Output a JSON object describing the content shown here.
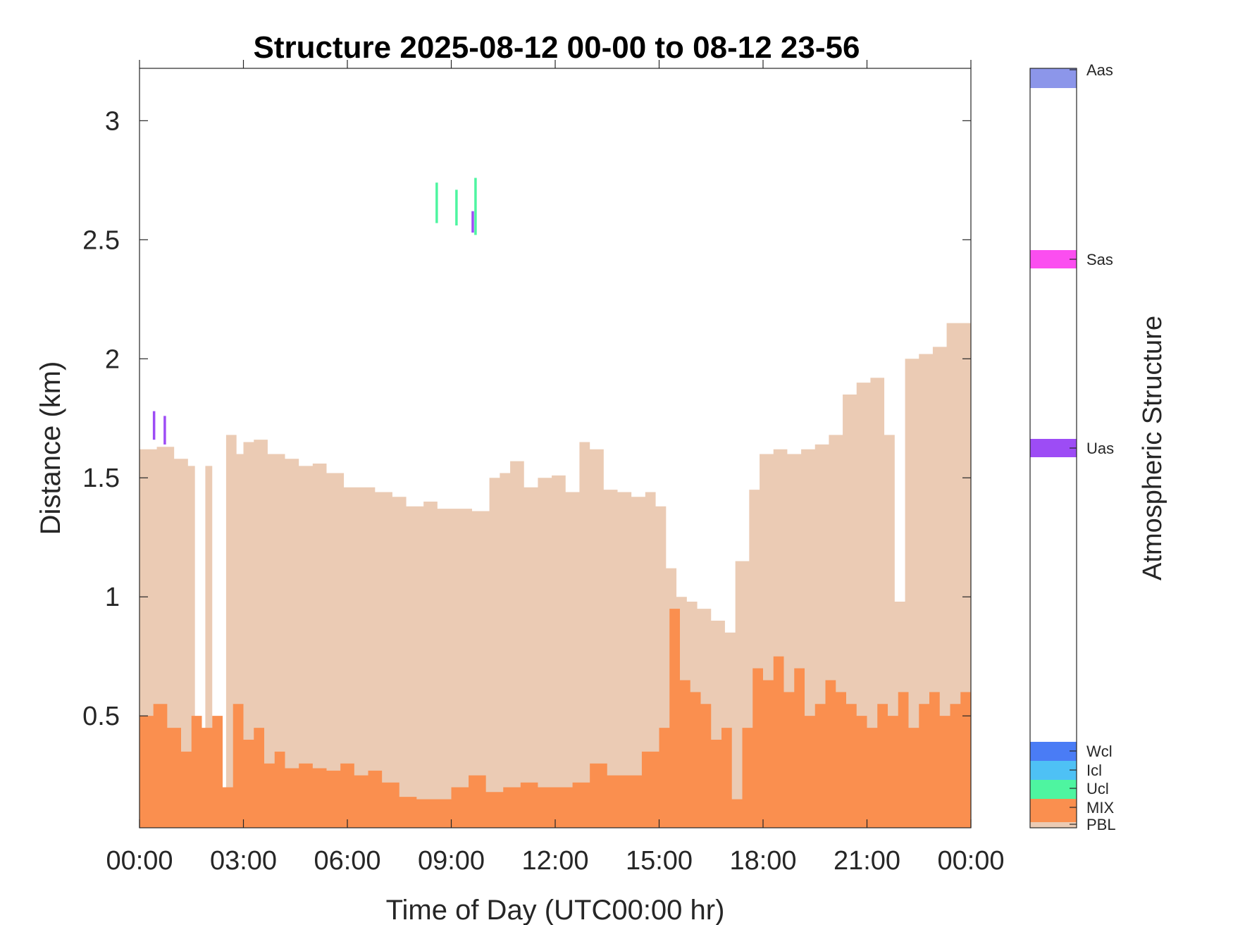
{
  "chart_data": {
    "type": "area",
    "title": "Structure 2025-08-12 00-00 to 08-12 23-56",
    "xlabel": "Time of Day (UTC00:00 hr)",
    "ylabel": "Distance (km)",
    "xlim": [
      0,
      24
    ],
    "ylim": [
      0.03,
      3.22
    ],
    "x_ticks": [
      0,
      3,
      6,
      9,
      12,
      15,
      18,
      21,
      24
    ],
    "x_tick_labels": [
      "00:00",
      "03:00",
      "06:00",
      "09:00",
      "12:00",
      "15:00",
      "18:00",
      "21:00",
      "00:00"
    ],
    "y_ticks": [
      0.5,
      1,
      1.5,
      2,
      2.5,
      3
    ],
    "y_tick_labels": [
      "0.5",
      "1",
      "1.5",
      "2",
      "2.5",
      "3"
    ],
    "grid": false,
    "colorbar": {
      "title": "Atmospheric Structure",
      "categories": [
        {
          "label": "Aas",
          "color": "#8c96ea"
        },
        {
          "label": "Sas",
          "color": "#fb4ef0"
        },
        {
          "label": "Uas",
          "color": "#9d4cf5"
        },
        {
          "label": "Wcl",
          "color": "#4a7cf5"
        },
        {
          "label": "Icl",
          "color": "#4ec1f5"
        },
        {
          "label": "Ucl",
          "color": "#4ef5a0"
        },
        {
          "label": "MIX",
          "color": "#fa8f4f"
        },
        {
          "label": "PBL",
          "color": "#ebcbb4"
        }
      ]
    },
    "series": [
      {
        "name": "PBL",
        "color": "#ebcbb4",
        "x": [
          0.0,
          0.5,
          1.0,
          1.4,
          1.6,
          1.9,
          2.1,
          2.5,
          2.8,
          3.0,
          3.3,
          3.7,
          4.2,
          4.6,
          5.0,
          5.4,
          5.9,
          6.3,
          6.8,
          7.3,
          7.7,
          8.2,
          8.6,
          9.1,
          9.6,
          9.8,
          10.1,
          10.4,
          10.7,
          11.1,
          11.5,
          11.9,
          12.3,
          12.7,
          13.0,
          13.4,
          13.8,
          14.2,
          14.6,
          14.9,
          15.2,
          15.5,
          15.8,
          16.1,
          16.5,
          16.9,
          17.2,
          17.6,
          17.9,
          18.3,
          18.7,
          19.1,
          19.5,
          19.9,
          20.3,
          20.7,
          21.1,
          21.5,
          21.8,
          22.1,
          22.5,
          22.9,
          23.3,
          23.7,
          24.0
        ],
        "y": [
          1.62,
          1.63,
          1.58,
          1.55,
          0.15,
          1.55,
          0.2,
          1.68,
          1.6,
          1.65,
          1.66,
          1.6,
          1.58,
          1.55,
          1.56,
          1.52,
          1.46,
          1.46,
          1.44,
          1.42,
          1.38,
          1.4,
          1.37,
          1.37,
          1.36,
          1.36,
          1.5,
          1.52,
          1.57,
          1.46,
          1.5,
          1.51,
          1.44,
          1.65,
          1.62,
          1.45,
          1.44,
          1.42,
          1.44,
          1.38,
          1.12,
          1.0,
          0.98,
          0.95,
          0.9,
          0.85,
          1.15,
          1.45,
          1.6,
          1.62,
          1.6,
          1.62,
          1.64,
          1.68,
          1.85,
          1.9,
          1.92,
          1.68,
          0.98,
          2.0,
          2.02,
          2.05,
          2.15,
          2.15,
          2.05
        ]
      },
      {
        "name": "MIX",
        "color": "#fa8f4f",
        "x": [
          0.0,
          0.4,
          0.8,
          1.2,
          1.5,
          1.8,
          2.1,
          2.4,
          2.7,
          3.0,
          3.3,
          3.6,
          3.9,
          4.2,
          4.6,
          5.0,
          5.4,
          5.8,
          6.2,
          6.6,
          7.0,
          7.5,
          8.0,
          8.5,
          9.0,
          9.5,
          10.0,
          10.5,
          11.0,
          11.5,
          12.0,
          12.5,
          13.0,
          13.5,
          14.0,
          14.5,
          15.0,
          15.3,
          15.6,
          15.9,
          16.2,
          16.5,
          16.8,
          17.1,
          17.4,
          17.7,
          18.0,
          18.3,
          18.6,
          18.9,
          19.2,
          19.5,
          19.8,
          20.1,
          20.4,
          20.7,
          21.0,
          21.3,
          21.6,
          21.9,
          22.2,
          22.5,
          22.8,
          23.1,
          23.4,
          23.7,
          24.0
        ],
        "y": [
          0.5,
          0.55,
          0.45,
          0.35,
          0.5,
          0.45,
          0.5,
          0.2,
          0.55,
          0.4,
          0.45,
          0.3,
          0.35,
          0.28,
          0.3,
          0.28,
          0.27,
          0.3,
          0.25,
          0.27,
          0.22,
          0.16,
          0.15,
          0.15,
          0.2,
          0.25,
          0.18,
          0.2,
          0.22,
          0.2,
          0.2,
          0.22,
          0.3,
          0.25,
          0.25,
          0.35,
          0.45,
          0.95,
          0.65,
          0.6,
          0.55,
          0.4,
          0.45,
          0.15,
          0.45,
          0.7,
          0.65,
          0.75,
          0.6,
          0.7,
          0.5,
          0.55,
          0.65,
          0.6,
          0.55,
          0.5,
          0.45,
          0.55,
          0.5,
          0.6,
          0.45,
          0.55,
          0.6,
          0.5,
          0.55,
          0.6,
          0.5
        ]
      }
    ],
    "layer_segments": [
      {
        "name": "Uas",
        "color": "#9d4cf5",
        "x": 0.42,
        "y0": 1.66,
        "y1": 1.78
      },
      {
        "name": "Uas",
        "color": "#9d4cf5",
        "x": 0.73,
        "y0": 1.64,
        "y1": 1.76
      },
      {
        "name": "Ucl",
        "color": "#4ef5a0",
        "x": 8.58,
        "y0": 2.57,
        "y1": 2.74
      },
      {
        "name": "Ucl",
        "color": "#4ef5a0",
        "x": 9.15,
        "y0": 2.56,
        "y1": 2.71
      },
      {
        "name": "Uas",
        "color": "#9d4cf5",
        "x": 9.62,
        "y0": 2.53,
        "y1": 2.62
      },
      {
        "name": "Ucl",
        "color": "#4ef5a0",
        "x": 9.7,
        "y0": 2.52,
        "y1": 2.76
      }
    ]
  }
}
